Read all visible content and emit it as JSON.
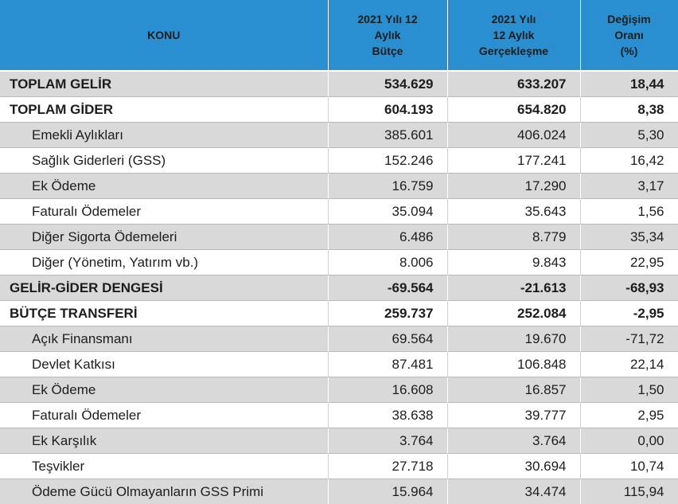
{
  "header": {
    "konu": "KONU",
    "col1": [
      "2021 Yılı 12",
      "Aylık",
      "Bütçe"
    ],
    "col2": [
      "2021 Yılı",
      "12 Aylık",
      "Gerçekleşme"
    ],
    "col3": [
      "Değişim",
      "Oranı",
      "(%)"
    ]
  },
  "rows": [
    {
      "label": "TOPLAM GELİR",
      "budget": "534.629",
      "actual": "633.207",
      "change": "18,44"
    },
    {
      "label": "TOPLAM GİDER",
      "budget": "604.193",
      "actual": "654.820",
      "change": "8,38"
    },
    {
      "label": "Emekli Aylıkları",
      "budget": "385.601",
      "actual": "406.024",
      "change": "5,30"
    },
    {
      "label": "Sağlık Giderleri (GSS)",
      "budget": "152.246",
      "actual": "177.241",
      "change": "16,42"
    },
    {
      "label": "Ek Ödeme",
      "budget": "16.759",
      "actual": "17.290",
      "change": "3,17"
    },
    {
      "label": "Faturalı Ödemeler",
      "budget": "35.094",
      "actual": "35.643",
      "change": "1,56"
    },
    {
      "label": "Diğer Sigorta Ödemeleri",
      "budget": "6.486",
      "actual": "8.779",
      "change": "35,34"
    },
    {
      "label": "Diğer (Yönetim, Yatırım vb.)",
      "budget": "8.006",
      "actual": "9.843",
      "change": "22,95"
    },
    {
      "label": "GELİR-GİDER DENGESİ",
      "budget": "-69.564",
      "actual": "-21.613",
      "change": "-68,93"
    },
    {
      "label": "BÜTÇE TRANSFERİ",
      "budget": "259.737",
      "actual": "252.084",
      "change": "-2,95"
    },
    {
      "label": "Açık Finansmanı",
      "budget": "69.564",
      "actual": "19.670",
      "change": "-71,72"
    },
    {
      "label": "Devlet Katkısı",
      "budget": "87.481",
      "actual": "106.848",
      "change": "22,14"
    },
    {
      "label": "Ek Ödeme",
      "budget": "16.608",
      "actual": "16.857",
      "change": "1,50"
    },
    {
      "label": "Faturalı Ödemeler",
      "budget": "38.638",
      "actual": "39.777",
      "change": "2,95"
    },
    {
      "label": "Ek Karşılık",
      "budget": "3.764",
      "actual": "3.764",
      "change": "0,00"
    },
    {
      "label": "Teşvikler",
      "budget": "27.718",
      "actual": "30.694",
      "change": "10,74"
    },
    {
      "label": "Ödeme Gücü Olmayanların GSS Primi",
      "budget": "15.964",
      "actual": "34.474",
      "change": "115,94"
    }
  ],
  "colors": {
    "header_bg": "#2a8fd0",
    "stripe": "#d9d9d9",
    "row_bg": "#ffffff"
  }
}
